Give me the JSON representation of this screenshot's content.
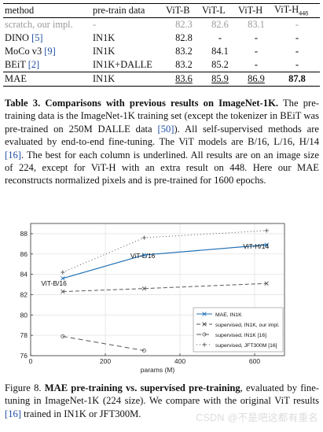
{
  "table": {
    "headers": [
      "method",
      "pre-train data",
      "ViT-B",
      "ViT-L",
      "ViT-H",
      "ViT-H",
      "448"
    ],
    "rows": [
      {
        "method": "scratch, our impl.",
        "cite": "",
        "data": "-",
        "vitb": "82.3",
        "vitl": "82.6",
        "vith": "83.1",
        "vith448": "-"
      },
      {
        "method": "DINO",
        "cite": "[5]",
        "data": "IN1K",
        "vitb": "82.8",
        "vitl": "-",
        "vith": "-",
        "vith448": "-"
      },
      {
        "method": "MoCo v3",
        "cite": "[9]",
        "data": "IN1K",
        "vitb": "83.2",
        "vitl": "84.1",
        "vith": "-",
        "vith448": "-"
      },
      {
        "method": "BEiT",
        "cite": "[2]",
        "data": "IN1K+DALLE",
        "vitb": "83.2",
        "vitl": "85.2",
        "vith": "-",
        "vith448": "-"
      },
      {
        "method": "MAE",
        "cite": "",
        "data": "IN1K",
        "vitb": "83.6",
        "vitl": "85.9",
        "vith": "86.9",
        "vith448": "87.8"
      }
    ]
  },
  "table_caption": {
    "head": "Table 3.  Comparisons with previous results on ImageNet-1K.",
    "p1": " The pre-training data is the ImageNet-1K training set (except the tokenizer in BEiT was pre-trained on 250M DALLE data ",
    "cite1": "[50]",
    "p2": "). All self-supervised methods are evaluated by end-to-end fine-tuning. The ViT models are B/16, L/16, H/14 ",
    "cite2": "[16]",
    "p3": ". The best for each column is underlined. All results are on an image size of 224, except for ViT-H with an extra result on 448. Here our MAE reconstructs normalized pixels and is pre-trained for 1600 epochs."
  },
  "figure_caption": {
    "label": "Figure 8. ",
    "head": "MAE pre-training vs. supervised pre-training",
    "p1": ", evaluated by fine-tuning in ImageNet-1K (224 size). We compare with the original ViT results ",
    "cite1": "[16]",
    "p2": " trained in IN1K or JFT300M."
  },
  "watermark": "CSDN @不是吧这都有重名",
  "chart_data": {
    "type": "line",
    "xlabel": "params (M)",
    "ylabel": "",
    "xlim": [
      0,
      680
    ],
    "ylim": [
      76,
      89
    ],
    "xticks": [
      0,
      200,
      400,
      600
    ],
    "yticks": [
      76,
      78,
      80,
      82,
      84,
      86,
      88
    ],
    "grid": true,
    "legend_position": "bottom-right",
    "series": [
      {
        "name": "MAE, IN1K",
        "color": "#1f6fb5",
        "dash": "",
        "x": [
          86,
          304,
          632
        ],
        "y": [
          83.6,
          85.9,
          86.9
        ]
      },
      {
        "name": "supervised, IN1K, our impl.",
        "color": "#555555",
        "dash": "5,3",
        "x": [
          86,
          304,
          632
        ],
        "y": [
          82.3,
          82.6,
          83.1
        ]
      },
      {
        "name": "supervised, IN1K [16]",
        "color": "#555555",
        "dash": "6,4",
        "x": [
          86,
          304
        ],
        "y": [
          77.9,
          76.5
        ]
      },
      {
        "name": "supervised, JFT300M [16]",
        "color": "#555555",
        "dash": "1,3",
        "x": [
          86,
          304,
          632
        ],
        "y": [
          84.2,
          87.6,
          88.3
        ]
      }
    ],
    "annotations": [
      {
        "text": "ViT-B/16",
        "x": 86,
        "y": 83.6
      },
      {
        "text": "ViT-L/16",
        "x": 304,
        "y": 85.9
      },
      {
        "text": "ViT-H/14",
        "x": 632,
        "y": 86.9
      }
    ]
  }
}
